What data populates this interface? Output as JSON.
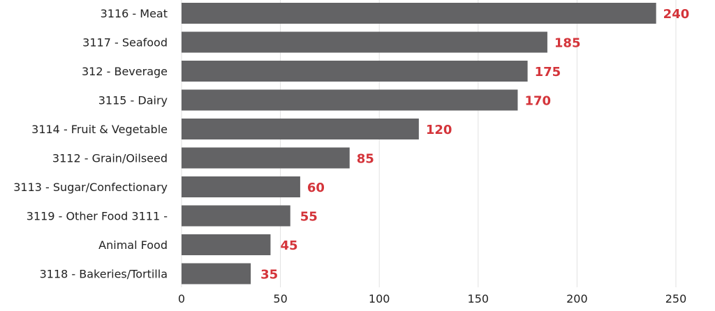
{
  "chart_data": {
    "type": "bar",
    "orientation": "horizontal",
    "categories": [
      "3116 - Meat",
      "3117 - Seafood",
      "312 - Beverage",
      "3115 - Dairy",
      "3114 - Fruit & Vegetable",
      "3112 - Grain/Oilseed",
      "3113 - Sugar/Confectionary",
      "3119 - Other Food 3111 -",
      "Animal Food",
      "3118 - Bakeries/Tortilla"
    ],
    "values": [
      240,
      185,
      175,
      170,
      120,
      85,
      60,
      55,
      45,
      35
    ],
    "value_labels": [
      "240",
      "185",
      "175",
      "170",
      "120",
      "85",
      "60",
      "55",
      "45",
      "35"
    ],
    "x_ticks": [
      0,
      50,
      100,
      150,
      200,
      250
    ],
    "x_tick_labels": [
      "0",
      "50",
      "100",
      "150",
      "200",
      "250"
    ],
    "xlim": [
      0,
      250
    ],
    "grid": true,
    "legend": "none",
    "colors": {
      "bar": "#636365",
      "value_label": "#d4343a",
      "grid": "#e2e2e2"
    }
  }
}
